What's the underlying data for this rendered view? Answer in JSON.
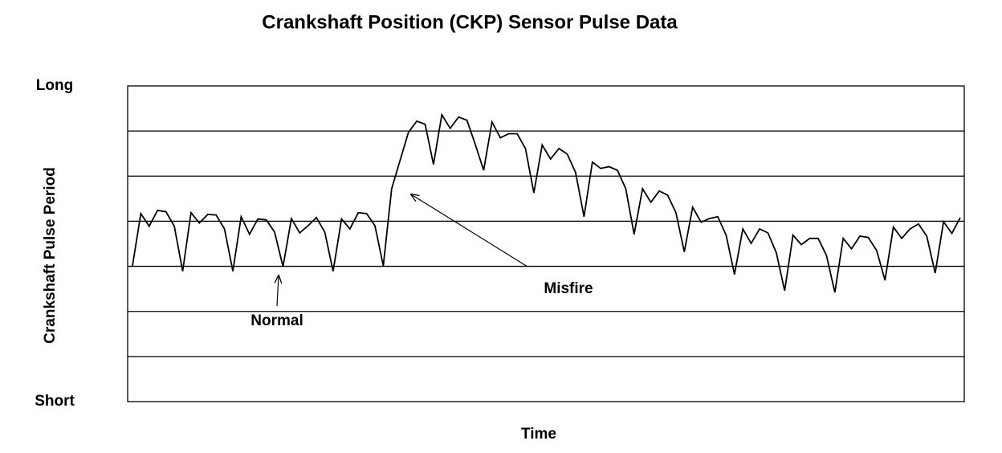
{
  "chart_data": {
    "type": "line",
    "title": "Crankshaft Position (CKP) Sensor Pulse Data",
    "x_label": "Time",
    "y_label": "Crankshaft Pulse Period",
    "ylim": [
      0,
      7
    ],
    "yticks": [
      {
        "value": 7,
        "label": "Long"
      },
      {
        "value": 0,
        "label": "Short"
      }
    ],
    "ygrid": [
      1,
      2,
      3,
      4,
      5,
      6
    ],
    "color": "#000000",
    "annotations": [
      {
        "text": "Normal"
      },
      {
        "text": "Misfire"
      }
    ],
    "values": [
      3.01,
      4.17,
      3.89,
      4.24,
      4.21,
      3.89,
      2.89,
      4.19,
      3.96,
      4.15,
      4.14,
      3.83,
      2.89,
      4.1,
      3.71,
      4.05,
      4.03,
      3.76,
      2.99,
      4.06,
      3.74,
      3.9,
      4.08,
      3.76,
      2.89,
      4.05,
      3.83,
      4.19,
      4.17,
      3.9,
      3.01,
      4.72,
      5.35,
      5.97,
      6.22,
      6.15,
      5.26,
      6.36,
      6.06,
      6.31,
      6.24,
      5.7,
      5.13,
      6.2,
      5.85,
      5.94,
      5.94,
      5.61,
      4.63,
      5.69,
      5.38,
      5.61,
      5.49,
      5.08,
      4.1,
      5.31,
      5.17,
      5.21,
      5.13,
      4.72,
      3.71,
      4.72,
      4.42,
      4.67,
      4.58,
      4.19,
      3.32,
      4.31,
      3.98,
      4.06,
      4.1,
      3.69,
      2.82,
      3.83,
      3.51,
      3.83,
      3.74,
      3.3,
      2.46,
      3.69,
      3.48,
      3.62,
      3.62,
      3.24,
      2.42,
      3.62,
      3.39,
      3.67,
      3.64,
      3.35,
      2.69,
      3.87,
      3.62,
      3.83,
      3.94,
      3.67,
      2.85,
      3.99,
      3.73,
      4.08
    ]
  }
}
